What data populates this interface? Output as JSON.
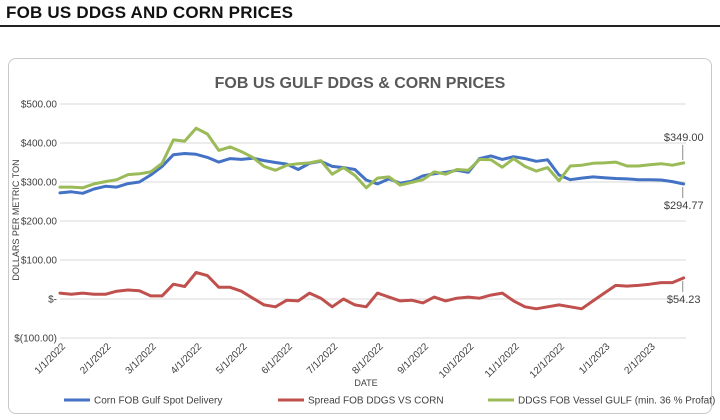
{
  "page_title": "FOB US DDGS AND CORN PRICES",
  "chart_data": {
    "type": "line",
    "title": "FOB US GULF DDGS & CORN PRICES",
    "xlabel": "DATE",
    "ylabel": "DOLLARS PER METRIC TON",
    "ylim": [
      -100,
      500
    ],
    "y_ticks": [
      {
        "value": 500,
        "label": "$500.00"
      },
      {
        "value": 400,
        "label": "$400.00"
      },
      {
        "value": 300,
        "label": "$300.00"
      },
      {
        "value": 200,
        "label": "$200.00"
      },
      {
        "value": 100,
        "label": "$100.00"
      },
      {
        "value": 0,
        "label": "$-"
      },
      {
        "value": -100,
        "label": "$(100.00)"
      }
    ],
    "x_range": [
      0,
      13.8
    ],
    "x_ticks": [
      {
        "value": 0,
        "label": "1/1/2022"
      },
      {
        "value": 1,
        "label": "2/1/2022"
      },
      {
        "value": 2,
        "label": "3/1/2022"
      },
      {
        "value": 3,
        "label": "4/1/2022"
      },
      {
        "value": 4,
        "label": "5/1/2022"
      },
      {
        "value": 5,
        "label": "6/1/2022"
      },
      {
        "value": 6,
        "label": "7/1/2022"
      },
      {
        "value": 7,
        "label": "8/1/2022"
      },
      {
        "value": 8,
        "label": "9/1/2022"
      },
      {
        "value": 9,
        "label": "10/1/2022"
      },
      {
        "value": 10,
        "label": "11/1/2022"
      },
      {
        "value": 11,
        "label": "12/1/2022"
      },
      {
        "value": 12,
        "label": "1/1/2023"
      },
      {
        "value": 13,
        "label": "2/1/2023"
      }
    ],
    "x": [
      0,
      0.25,
      0.5,
      0.75,
      1,
      1.25,
      1.5,
      1.75,
      2,
      2.25,
      2.5,
      2.75,
      3,
      3.25,
      3.5,
      3.75,
      4,
      4.25,
      4.5,
      4.75,
      5,
      5.25,
      5.5,
      5.75,
      6,
      6.25,
      6.5,
      6.75,
      7,
      7.25,
      7.5,
      7.75,
      8,
      8.25,
      8.5,
      8.75,
      9,
      9.25,
      9.5,
      9.75,
      10,
      10.25,
      10.5,
      10.75,
      11,
      11.25,
      11.5,
      11.75,
      12,
      12.25,
      12.5,
      12.75,
      13,
      13.25,
      13.5,
      13.75
    ],
    "series": [
      {
        "name": "Corn FOB Gulf Spot Delivery",
        "color": "#4472c4",
        "values": [
          272,
          275,
          271,
          282,
          289,
          287,
          296,
          300,
          318,
          340,
          370,
          373,
          371,
          363,
          351,
          360,
          358,
          361,
          355,
          350,
          346,
          332,
          348,
          353,
          340,
          337,
          332,
          305,
          295,
          308,
          297,
          302,
          316,
          321,
          325,
          330,
          325,
          360,
          367,
          358,
          365,
          360,
          353,
          357,
          318,
          306,
          310,
          313,
          311,
          309,
          308,
          306,
          306,
          305,
          301,
          294.77
        ]
      },
      {
        "name": "Spread FOB DDGS VS CORN",
        "color": "#c0504d",
        "values": [
          15,
          12,
          15,
          12,
          12,
          20,
          23,
          21,
          8,
          8,
          38,
          32,
          68,
          60,
          30,
          30,
          20,
          2,
          -15,
          -20,
          -3,
          -5,
          15,
          2,
          -20,
          0,
          -15,
          -20,
          15,
          5,
          -5,
          -3,
          -10,
          5,
          -5,
          2,
          5,
          2,
          10,
          15,
          -5,
          -20,
          -25,
          -20,
          -15,
          -20,
          -25,
          -5,
          15,
          35,
          33,
          35,
          38,
          42,
          42,
          54.23
        ]
      },
      {
        "name": "DDGS FOB Vessel GULF  (min. 36 % Profat)",
        "color": "#9bbb59",
        "values": [
          287,
          287,
          285,
          295,
          301,
          306,
          319,
          321,
          326,
          348,
          408,
          405,
          438,
          423,
          381,
          390,
          378,
          363,
          340,
          330,
          343,
          347,
          349,
          355,
          320,
          337,
          317,
          285,
          310,
          313,
          292,
          299,
          306,
          326,
          320,
          332,
          330,
          358,
          357,
          338,
          360,
          340,
          328,
          337,
          303,
          341,
          343,
          348,
          349,
          351,
          341,
          341,
          344,
          347,
          343,
          349
        ]
      }
    ],
    "annotations": [
      {
        "label": "$349.00",
        "series": 2,
        "value": 349
      },
      {
        "label": "$294.77",
        "series": 0,
        "value": 294.77
      },
      {
        "label": "$54.23",
        "series": 1,
        "value": 54.23
      }
    ],
    "legend_position": "bottom",
    "grid": true
  }
}
